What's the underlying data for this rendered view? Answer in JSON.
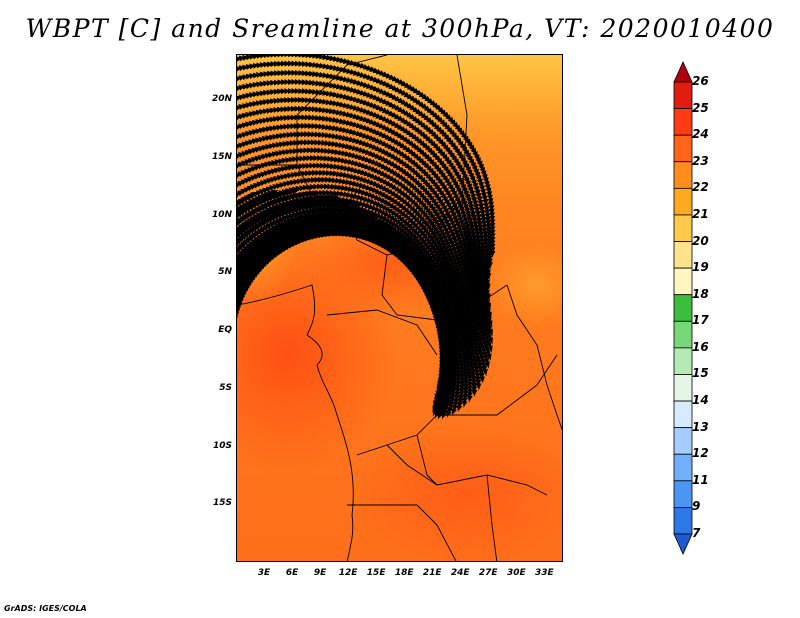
{
  "title": "WBPT [C] and Sreamline at 300hPa, VT: 2020010400",
  "credit": "GrADS: IGES/COLA",
  "map": {
    "lat_range": [
      -20,
      24
    ],
    "lon_range": [
      0,
      35
    ],
    "lat_labels": [
      "20N",
      "15N",
      "10N",
      "5N",
      "EQ",
      "5S",
      "10S",
      "15S"
    ],
    "lat_values": [
      20,
      15,
      10,
      5,
      0,
      -5,
      -10,
      -15
    ],
    "lon_labels": [
      "3E",
      "6E",
      "9E",
      "12E",
      "15E",
      "18E",
      "21E",
      "24E",
      "27E",
      "30E",
      "33E"
    ],
    "lon_values": [
      3,
      6,
      9,
      12,
      15,
      18,
      21,
      24,
      27,
      30,
      33
    ],
    "colors": {
      "north_band": "#ffc445",
      "transition": "#ff9a2a",
      "main": "#ff7a1e",
      "core": "#ff5a16",
      "streamline": "#000000",
      "border": "#000000"
    }
  },
  "colorbar": {
    "labels": [
      "26",
      "25",
      "24",
      "23",
      "22",
      "21",
      "20",
      "19",
      "18",
      "17",
      "16",
      "15",
      "14",
      "13",
      "12",
      "11",
      "9",
      "7"
    ],
    "colors": [
      "#b0000e",
      "#e01d0e",
      "#ff3c14",
      "#ff6419",
      "#ff8c1e",
      "#ffa91e",
      "#ffc94b",
      "#ffe28c",
      "#fff6c0",
      "#3cbe3c",
      "#78d778",
      "#b4ebb4",
      "#e6f6e6",
      "#d7ebff",
      "#a5cdff",
      "#73afff",
      "#4b96f5",
      "#2d78e6",
      "#1e5ad2"
    ]
  }
}
